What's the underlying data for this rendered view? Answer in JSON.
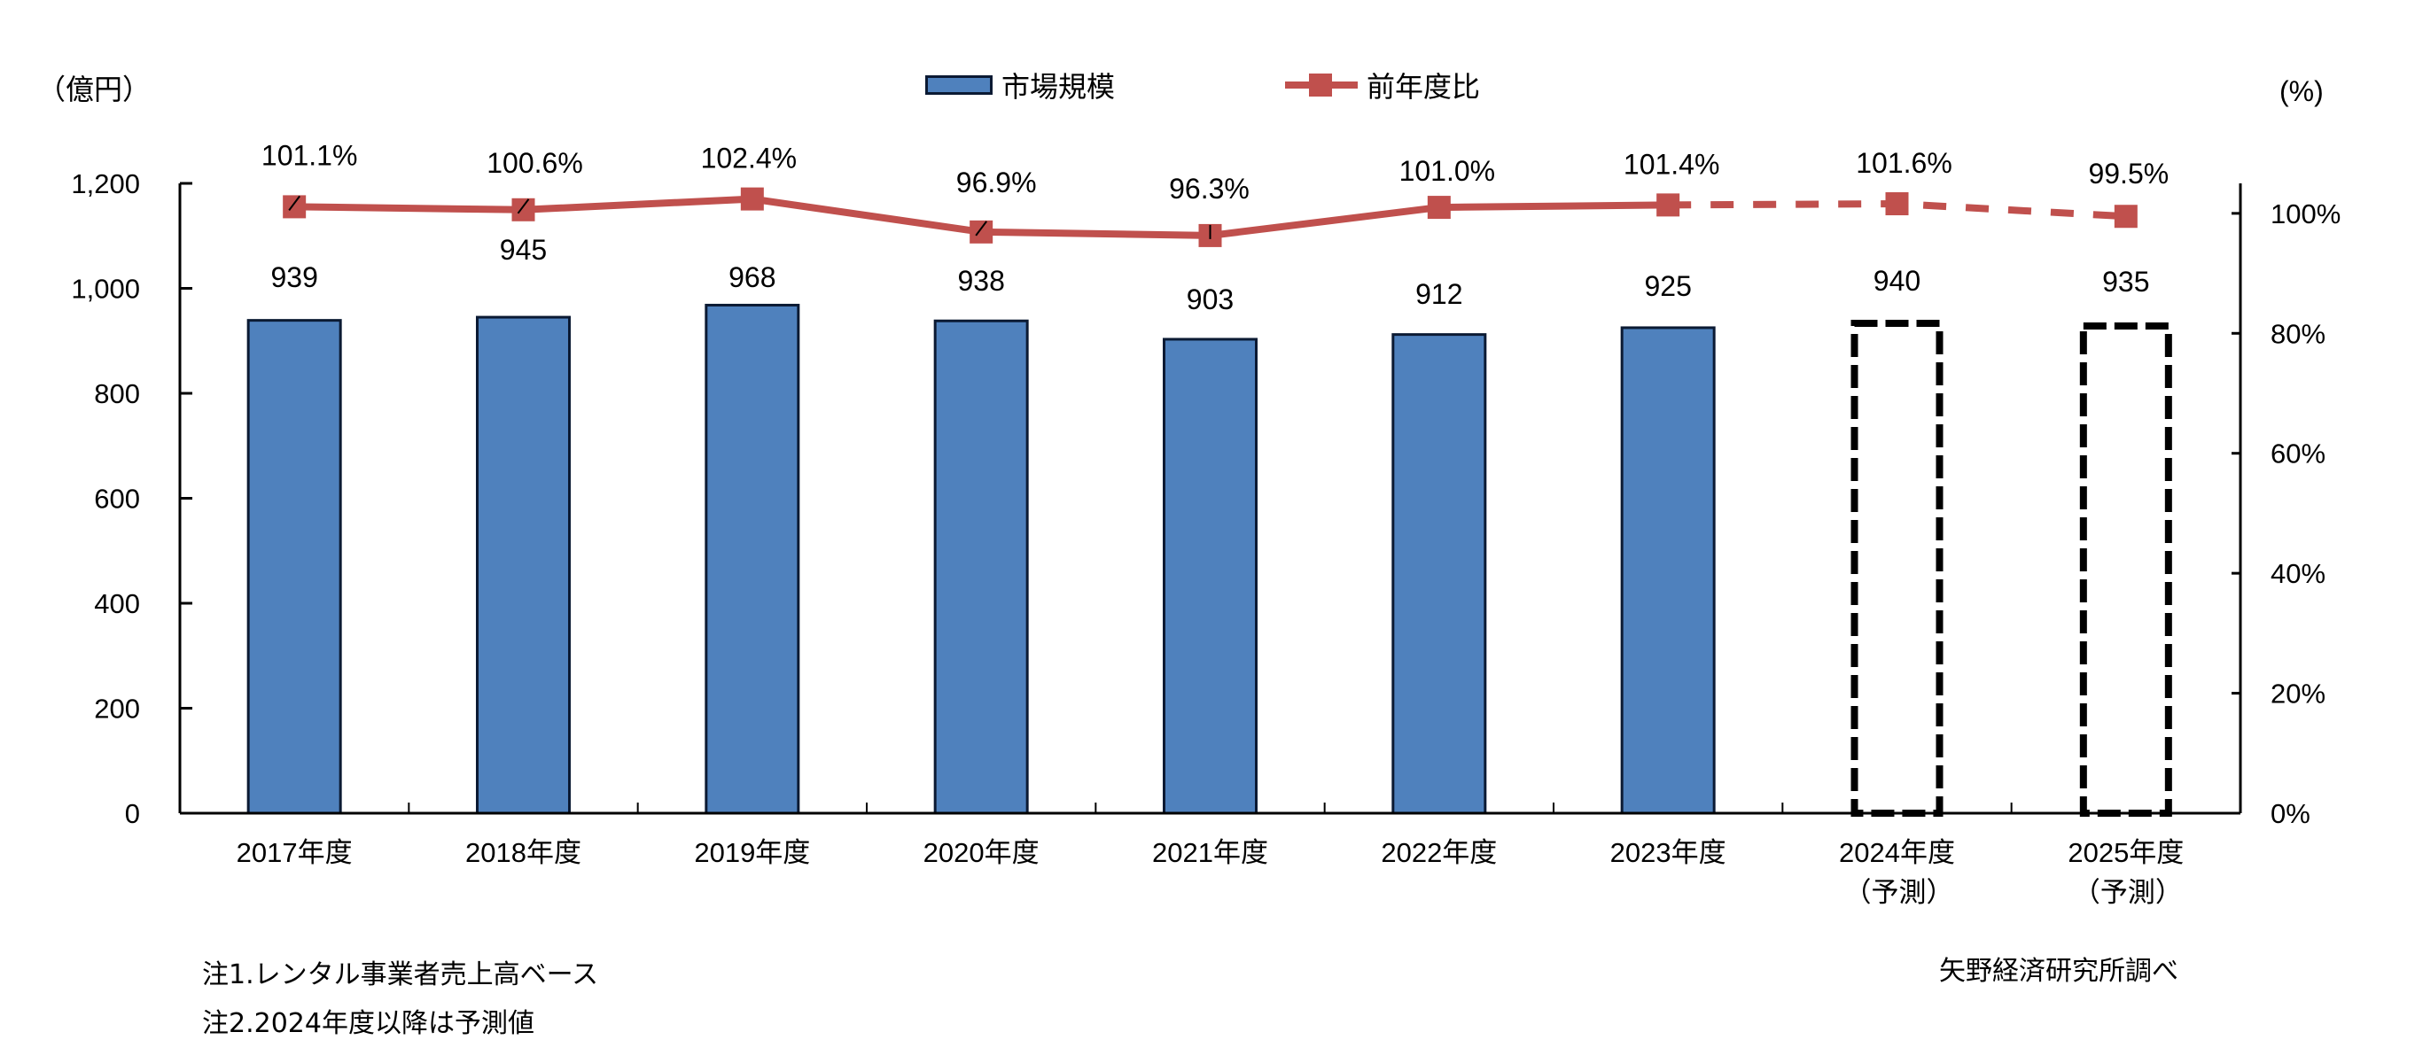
{
  "chart_data": {
    "type": "bar+line",
    "title": "",
    "categories": [
      "2017年度",
      "2018年度",
      "2019年度",
      "2020年度",
      "2021年度",
      "2022年度",
      "2023年度",
      "2024年度",
      "2025年度"
    ],
    "category_sublabels": [
      "",
      "",
      "",
      "",
      "",
      "",
      "",
      "（予測）",
      "（予測）"
    ],
    "series": [
      {
        "name": "市場規模",
        "type": "bar",
        "axis": "left",
        "values": [
          939,
          945,
          968,
          938,
          903,
          912,
          925,
          940,
          935
        ],
        "labels": [
          "939",
          "945",
          "968",
          "938",
          "903",
          "912",
          "925",
          "940",
          "935"
        ],
        "forecast_from_index": 7,
        "color": "#4F81BD"
      },
      {
        "name": "前年度比",
        "type": "line",
        "axis": "right",
        "values": [
          101.1,
          100.6,
          102.4,
          96.9,
          96.3,
          101.0,
          101.4,
          101.6,
          99.5
        ],
        "labels": [
          "101.1%",
          "100.6%",
          "102.4%",
          "96.9%",
          "96.3%",
          "101.0%",
          "101.4%",
          "101.6%",
          "99.5%"
        ],
        "forecast_from_index": 7,
        "color": "#C0504D"
      }
    ],
    "left_axis": {
      "label": "（億円）",
      "min": 0,
      "max": 1200,
      "ticks": [
        0,
        200,
        400,
        600,
        800,
        1000,
        1200
      ],
      "tick_labels": [
        "0",
        "200",
        "400",
        "600",
        "800",
        "1,000",
        "1,200"
      ]
    },
    "right_axis": {
      "label": "(%)",
      "min": 0,
      "max": 105,
      "ticks": [
        0,
        20,
        40,
        60,
        80,
        100
      ],
      "tick_labels": [
        "0%",
        "20%",
        "40%",
        "60%",
        "80%",
        "100%"
      ]
    },
    "xlabel": "",
    "ylabel": "（億円）",
    "y2label": "(%)",
    "grid": false,
    "legend_position": "top"
  },
  "legend": {
    "bar_label": "市場規模",
    "line_label": "前年度比"
  },
  "axes": {
    "left_unit": "（億円）",
    "right_unit": "(%)"
  },
  "notes": {
    "note1": "注1.レンタル事業者売上高ベース",
    "note2": "注2.2024年度以降は予測値"
  },
  "source": "矢野経済研究所調べ",
  "colors": {
    "bar": "#4F81BD",
    "bar_border": "#0b1a33",
    "line": "#C0504D",
    "forecast_outline": "#000000"
  }
}
